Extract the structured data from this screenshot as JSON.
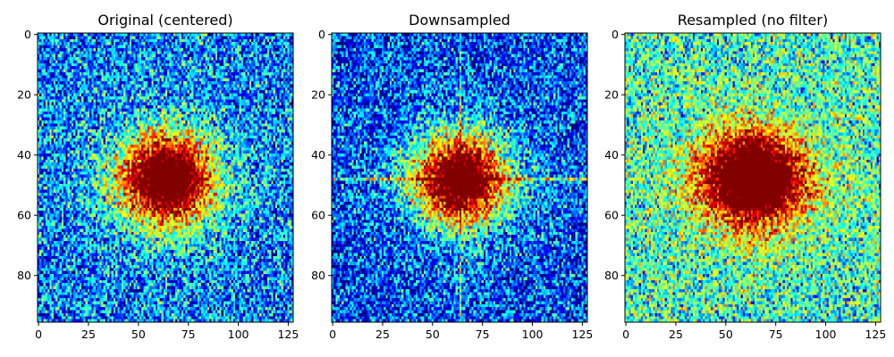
{
  "chart_data": [
    {
      "type": "heatmap",
      "title": "Original (centered)",
      "colormap": "jet",
      "grid": false,
      "xlim": [
        0,
        128
      ],
      "ylim": [
        96,
        0
      ],
      "x_ticks": [
        "0",
        "25",
        "50",
        "75",
        "100",
        "125"
      ],
      "y_ticks": [
        "0",
        "20",
        "40",
        "60",
        "80"
      ],
      "x_tick_values": [
        0,
        25,
        50,
        75,
        100,
        125
      ],
      "y_tick_values": [
        0,
        20,
        40,
        60,
        80
      ],
      "pattern": {
        "center": [
          64,
          48
        ],
        "noise": "speckle",
        "background_level": 0.25,
        "core_radius": [
          22,
          14
        ],
        "cross_streaks": false
      }
    },
    {
      "type": "heatmap",
      "title": "Downsampled",
      "colormap": "jet",
      "grid": false,
      "xlim": [
        0,
        128
      ],
      "ylim": [
        96,
        0
      ],
      "x_ticks": [
        "0",
        "25",
        "50",
        "75",
        "100",
        "125"
      ],
      "y_ticks": [
        "0",
        "20",
        "40",
        "60",
        "80"
      ],
      "x_tick_values": [
        0,
        25,
        50,
        75,
        100,
        125
      ],
      "y_tick_values": [
        0,
        20,
        40,
        60,
        80
      ],
      "pattern": {
        "center": [
          64,
          48
        ],
        "noise": "speckle",
        "background_level": 0.18,
        "core_radius": [
          22,
          14
        ],
        "cross_streaks": true
      }
    },
    {
      "type": "heatmap",
      "title": "Resampled (no filter)",
      "colormap": "jet",
      "grid": false,
      "xlim": [
        0,
        128
      ],
      "ylim": [
        96,
        0
      ],
      "x_ticks": [
        "0",
        "25",
        "50",
        "75",
        "100",
        "125"
      ],
      "y_ticks": [
        "0",
        "20",
        "40",
        "60",
        "80"
      ],
      "x_tick_values": [
        0,
        25,
        50,
        75,
        100,
        125
      ],
      "y_tick_values": [
        0,
        20,
        40,
        60,
        80
      ],
      "pattern": {
        "center": [
          64,
          48
        ],
        "noise": "speckle",
        "background_level": 0.42,
        "core_radius": [
          24,
          14
        ],
        "cross_streaks": false
      }
    }
  ]
}
